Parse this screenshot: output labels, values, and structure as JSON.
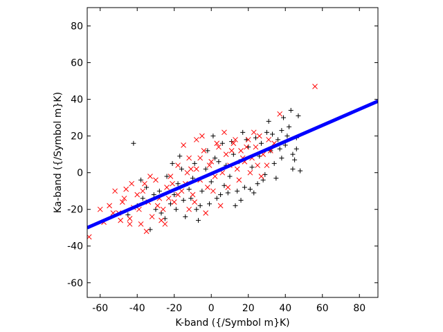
{
  "chart_data": {
    "type": "scatter",
    "title": "",
    "xlabel": "K-band ({/Symbol m}K)",
    "ylabel": "Ka-band ({/Symbol m}K)",
    "xlim": [
      -67,
      90
    ],
    "ylim": [
      -68,
      90
    ],
    "xticks": [
      -60,
      -40,
      -20,
      0,
      20,
      40,
      60,
      80
    ],
    "yticks": [
      -60,
      -40,
      -20,
      0,
      20,
      40,
      60,
      80
    ],
    "xtick_labels": [
      "-60",
      "-40",
      "-20",
      "0",
      "20",
      "40",
      "60",
      "80"
    ],
    "ytick_labels": [
      "-60",
      "-40",
      "-20",
      "0",
      "20",
      "40",
      "60",
      "80"
    ],
    "grid": false,
    "series": [
      {
        "marker": "plus",
        "color": "#000000",
        "points": [
          [
            -42,
            16
          ],
          [
            -33,
            -31
          ],
          [
            -40,
            -18
          ],
          [
            -45,
            -23
          ],
          [
            -35,
            -8
          ],
          [
            -30,
            -20
          ],
          [
            -25,
            -25
          ],
          [
            -22,
            -17
          ],
          [
            -20,
            -12
          ],
          [
            -18,
            -6
          ],
          [
            -15,
            -15
          ],
          [
            -12,
            -9
          ],
          [
            -10,
            -3
          ],
          [
            -8,
            -20
          ],
          [
            -5,
            -10
          ],
          [
            -3,
            2
          ],
          [
            0,
            -5
          ],
          [
            2,
            8
          ],
          [
            5,
            -12
          ],
          [
            8,
            4
          ],
          [
            10,
            -2
          ],
          [
            12,
            10
          ],
          [
            15,
            6
          ],
          [
            18,
            -8
          ],
          [
            20,
            14
          ],
          [
            22,
            3
          ],
          [
            24,
            19
          ],
          [
            26,
            9
          ],
          [
            28,
            -4
          ],
          [
            30,
            22
          ],
          [
            32,
            12
          ],
          [
            34,
            5
          ],
          [
            36,
            18
          ],
          [
            38,
            8
          ],
          [
            40,
            15
          ],
          [
            42,
            25
          ],
          [
            44,
            10
          ],
          [
            46,
            13
          ],
          [
            47,
            31
          ],
          [
            48,
            1
          ],
          [
            43,
            34
          ],
          [
            33,
            21
          ],
          [
            25,
            -6
          ],
          [
            19,
            18
          ],
          [
            14,
            -10
          ],
          [
            6,
            16
          ],
          [
            -2,
            12
          ],
          [
            -9,
            5
          ],
          [
            -16,
            2
          ],
          [
            -24,
            -2
          ],
          [
            -28,
            -10
          ],
          [
            -37,
            -14
          ],
          [
            -14,
            -24
          ],
          [
            -6,
            -18
          ],
          [
            3,
            -14
          ],
          [
            9,
            -11
          ],
          [
            16,
            -15
          ],
          [
            21,
            -9
          ],
          [
            29,
            -1
          ],
          [
            35,
            -3
          ],
          [
            38,
            23
          ],
          [
            41,
            20
          ],
          [
            45,
            7
          ],
          [
            31,
            28
          ],
          [
            27,
            16
          ],
          [
            17,
            22
          ],
          [
            11,
            17
          ],
          [
            7,
            -7
          ],
          [
            -1,
            -17
          ],
          [
            -11,
            -14
          ],
          [
            -19,
            -20
          ],
          [
            -27,
            -22
          ],
          [
            -31,
            -12
          ],
          [
            -38,
            -4
          ],
          [
            -17,
            9
          ],
          [
            1,
            20
          ],
          [
            13,
            -18
          ],
          [
            23,
            -11
          ],
          [
            37,
            13
          ],
          [
            44,
            2
          ],
          [
            -21,
            5
          ],
          [
            -7,
            -26
          ],
          [
            4,
            6
          ],
          [
            39,
            30
          ],
          [
            46,
            19
          ]
        ]
      },
      {
        "marker": "cross",
        "color": "#ff0000",
        "points": [
          [
            56,
            47
          ],
          [
            -66,
            -35
          ],
          [
            -60,
            -20
          ],
          [
            -58,
            -27
          ],
          [
            -55,
            -18
          ],
          [
            -52,
            -10
          ],
          [
            -50,
            -22
          ],
          [
            -48,
            -16
          ],
          [
            -46,
            -9
          ],
          [
            -44,
            -25
          ],
          [
            -42,
            -19
          ],
          [
            -40,
            -12
          ],
          [
            -38,
            -28
          ],
          [
            -36,
            -6
          ],
          [
            -34,
            -16
          ],
          [
            -32,
            -24
          ],
          [
            -30,
            -4
          ],
          [
            -28,
            -14
          ],
          [
            -26,
            -20
          ],
          [
            -24,
            -8
          ],
          [
            -22,
            -2
          ],
          [
            -20,
            -16
          ],
          [
            -18,
            4
          ],
          [
            -16,
            -10
          ],
          [
            -14,
            -6
          ],
          [
            -12,
            8
          ],
          [
            -10,
            -12
          ],
          [
            -8,
            2
          ],
          [
            -6,
            -4
          ],
          [
            -4,
            12
          ],
          [
            -2,
            -8
          ],
          [
            0,
            6
          ],
          [
            2,
            -2
          ],
          [
            4,
            14
          ],
          [
            6,
            0
          ],
          [
            8,
            10
          ],
          [
            10,
            4
          ],
          [
            12,
            16
          ],
          [
            14,
            2
          ],
          [
            16,
            12
          ],
          [
            18,
            6
          ],
          [
            20,
            18
          ],
          [
            22,
            8
          ],
          [
            24,
            14
          ],
          [
            26,
            20
          ],
          [
            28,
            10
          ],
          [
            30,
            4
          ],
          [
            32,
            12
          ],
          [
            34,
            16
          ],
          [
            37,
            32
          ],
          [
            -5,
            20
          ],
          [
            -8,
            18
          ],
          [
            -3,
            -22
          ],
          [
            5,
            -18
          ],
          [
            -15,
            15
          ],
          [
            -25,
            -28
          ],
          [
            -35,
            -32
          ],
          [
            -44,
            -28
          ],
          [
            -12,
            -20
          ],
          [
            -18,
            -12
          ],
          [
            -6,
            8
          ],
          [
            3,
            16
          ],
          [
            9,
            -8
          ],
          [
            15,
            -4
          ],
          [
            21,
            0
          ],
          [
            27,
            -2
          ],
          [
            11,
            12
          ],
          [
            -1,
            4
          ],
          [
            -9,
            -16
          ],
          [
            -21,
            -6
          ],
          [
            -29,
            -18
          ],
          [
            -39,
            -20
          ],
          [
            -47,
            -14
          ],
          [
            -53,
            -22
          ],
          [
            -33,
            -2
          ],
          [
            -27,
            -26
          ],
          [
            -13,
            0
          ],
          [
            7,
            22
          ],
          [
            13,
            18
          ],
          [
            19,
            14
          ],
          [
            25,
            4
          ],
          [
            31,
            18
          ],
          [
            -11,
            2
          ],
          [
            -23,
            -14
          ],
          [
            1,
            -10
          ],
          [
            17,
            8
          ],
          [
            23,
            22
          ],
          [
            -37,
            -10
          ],
          [
            -43,
            -6
          ],
          [
            -49,
            -26
          ]
        ]
      },
      {
        "name": "",
        "marker": "line",
        "color": "#0000ff",
        "points": [
          [
            -67,
            -30
          ],
          [
            90,
            39
          ]
        ]
      }
    ]
  }
}
